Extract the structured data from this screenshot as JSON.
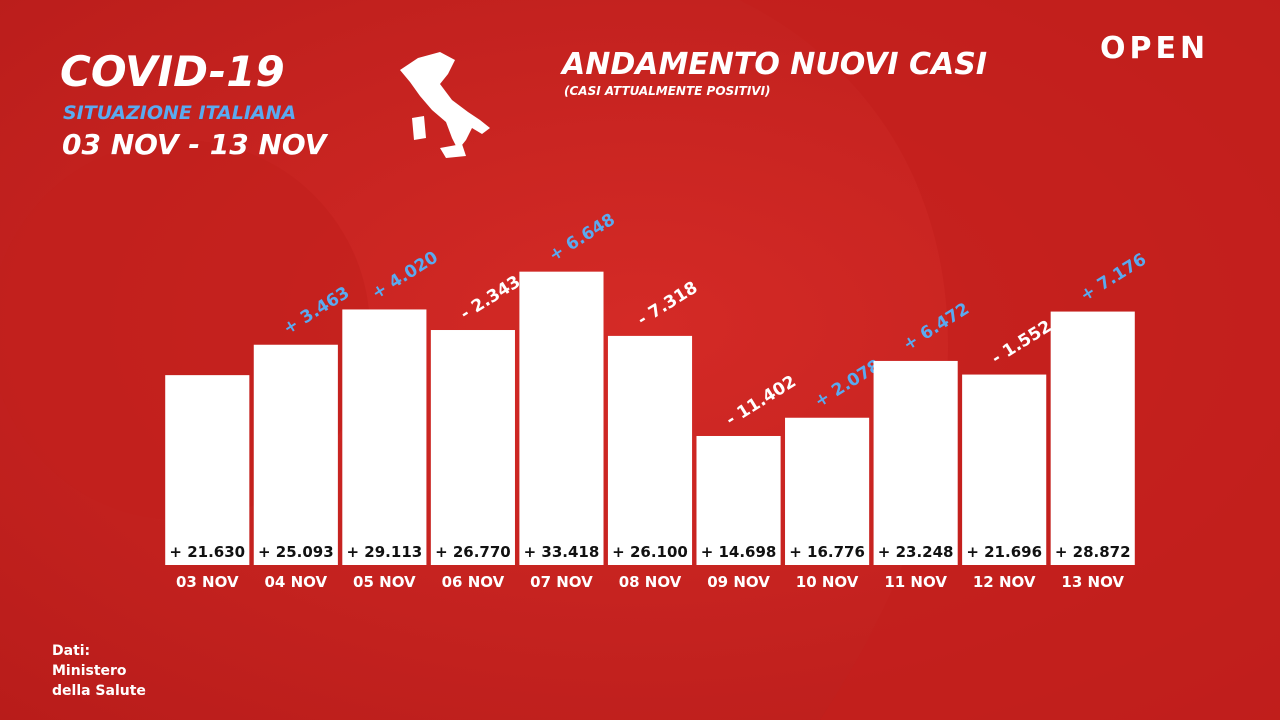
{
  "chart_data": {
    "type": "bar",
    "title": "ANDAMENTO NUOVI CASI",
    "subtitle": "(CASI ATTUALMENTE POSITIVI)",
    "header": {
      "title": "COVID-19",
      "subtitle": "SITUAZIONE ITALIANA",
      "period": "03 NOV - 13 NOV"
    },
    "brand": "OPEN",
    "source": [
      "Dati:",
      "Ministero",
      "della Salute"
    ],
    "categories": [
      "03 NOV",
      "04 NOV",
      "05 NOV",
      "06 NOV",
      "07 NOV",
      "08 NOV",
      "09 NOV",
      "10 NOV",
      "11 NOV",
      "12 NOV",
      "13 NOV"
    ],
    "values": [
      21630,
      25093,
      29113,
      26770,
      33418,
      26100,
      14698,
      16776,
      23248,
      21696,
      28872
    ],
    "value_labels": [
      "+ 21.630",
      "+ 25.093",
      "+ 29.113",
      "+ 26.770",
      "+ 33.418",
      "+ 26.100",
      "+ 14.698",
      "+ 16.776",
      "+ 23.248",
      "+ 21.696",
      "+ 28.872"
    ],
    "changes": [
      null,
      3463,
      4020,
      -2343,
      6648,
      -7318,
      -11402,
      2078,
      6472,
      -1552,
      7176
    ],
    "change_labels": [
      null,
      "+ 3.463",
      "+ 4.020",
      "- 2.343",
      "+ 6.648",
      "- 7.318",
      "- 11.402",
      "+ 2.078",
      "+ 6.472",
      "- 1.552",
      "+ 7.176"
    ],
    "color": "#ffffff",
    "positive_color": "#5aaaf0",
    "negative_color": "#ffffff",
    "ylim": [
      0,
      36000
    ]
  }
}
